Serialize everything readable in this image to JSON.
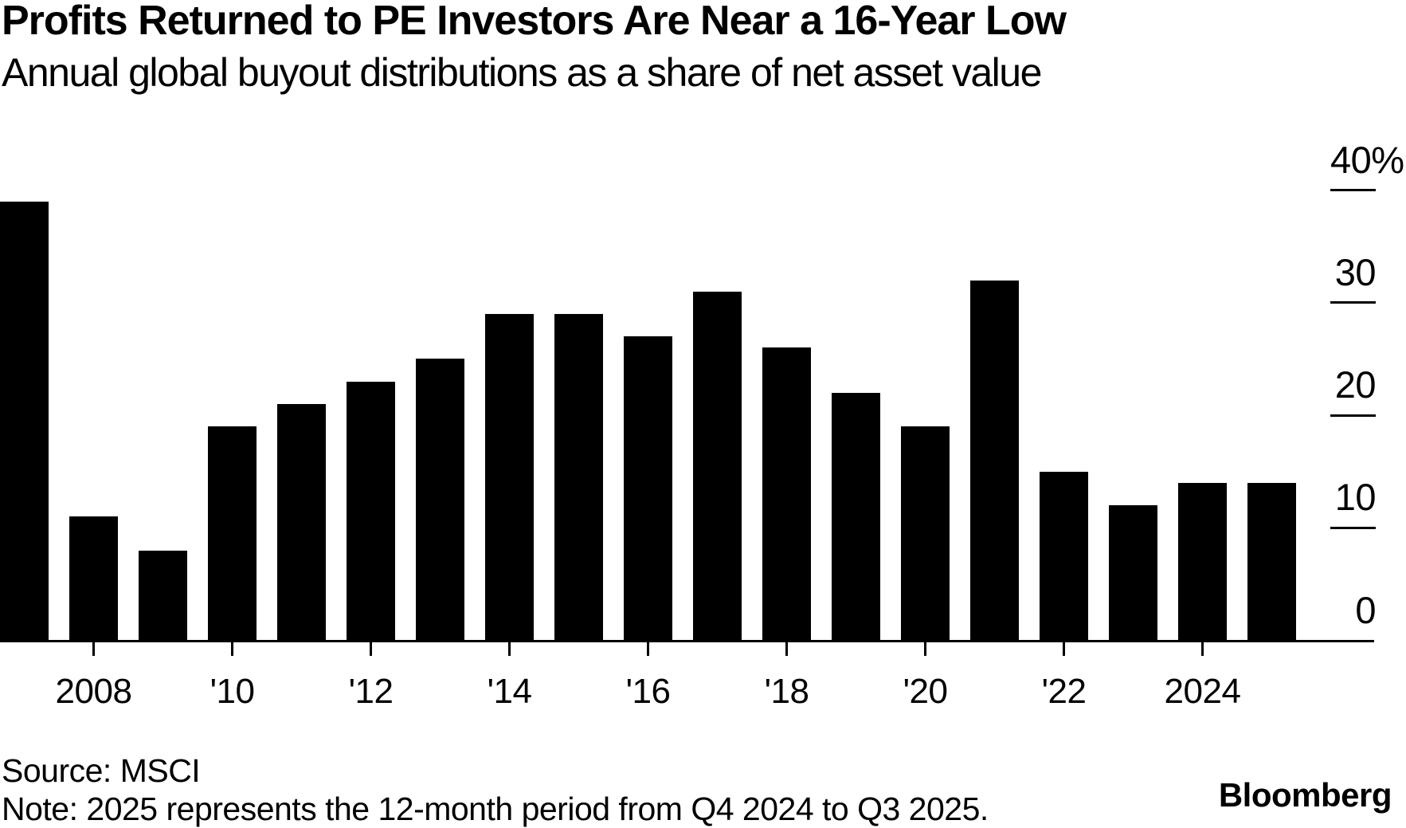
{
  "header": {
    "title": "Profits Returned to PE Investors Are Near a 16-Year Low",
    "subtitle": "Annual global buyout distributions as a share of net asset value"
  },
  "chart_data": {
    "type": "bar",
    "title": "Profits Returned to PE Investors Are Near a 16-Year Low",
    "subtitle": "Annual global buyout distributions as a share of net asset value",
    "unit": "%",
    "categories": [
      2007,
      2008,
      2009,
      2010,
      2011,
      2012,
      2013,
      2014,
      2015,
      2016,
      2017,
      2018,
      2019,
      2020,
      2021,
      2022,
      2023,
      2024,
      2025
    ],
    "values": [
      39,
      11,
      8,
      19,
      21,
      23,
      25,
      29,
      29,
      27,
      31,
      26,
      22,
      19,
      32,
      15,
      12,
      14,
      14
    ],
    "ylim": [
      0,
      40
    ],
    "grid": false,
    "legend": false,
    "y_axis_position": "right",
    "y_ticks": [
      {
        "label": "40%",
        "value": 40
      },
      {
        "label": "30",
        "value": 30
      },
      {
        "label": "20",
        "value": 20
      },
      {
        "label": "10",
        "value": 10
      },
      {
        "label": "0",
        "value": 0
      }
    ],
    "x_ticks": [
      {
        "label": "2008",
        "year": 2008
      },
      {
        "label": "'10",
        "year": 2010
      },
      {
        "label": "'12",
        "year": 2012
      },
      {
        "label": "'14",
        "year": 2014
      },
      {
        "label": "'16",
        "year": 2016
      },
      {
        "label": "'18",
        "year": 2018
      },
      {
        "label": "'20",
        "year": 2020
      },
      {
        "label": "'22",
        "year": 2022
      },
      {
        "label": "2024",
        "year": 2024
      }
    ],
    "bar_color": "#000000",
    "background": "#ffffff"
  },
  "footer": {
    "source": "Source: MSCI",
    "note": "Note: 2025 represents the 12-month period from Q4 2024 to Q3 2025.",
    "brand": "Bloomberg"
  }
}
